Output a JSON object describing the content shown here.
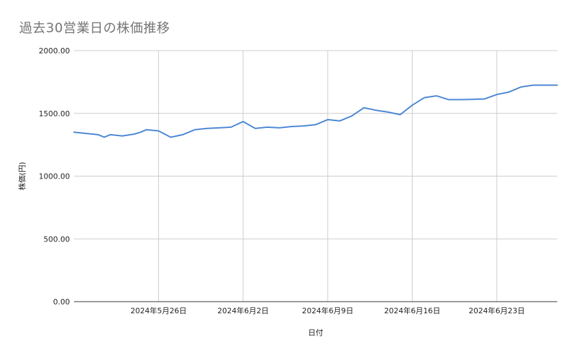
{
  "chart_data": {
    "type": "line",
    "title": "過去30営業日の株価推移",
    "xlabel": "日付",
    "ylabel": "株価(円)",
    "ylim": [
      0,
      2000
    ],
    "y_ticks": [
      0,
      500,
      1000,
      1500,
      2000
    ],
    "y_tick_labels": [
      "0.00",
      "500.00",
      "1000.00",
      "1500.00",
      "2000.00"
    ],
    "xlim": [
      "2024-05-19",
      "2024-06-28"
    ],
    "x_ticks": [
      "2024-05-26",
      "2024-06-02",
      "2024-06-09",
      "2024-06-16",
      "2024-06-23"
    ],
    "x_tick_labels": [
      "2024年5月26日",
      "2024年6月2日",
      "2024年6月9日",
      "2024年6月16日",
      "2024年6月23日"
    ],
    "grid": true,
    "line_color": "#4a86d4",
    "series": [
      {
        "x": [
          "2024-05-19",
          "2024-05-21",
          "2024-05-21",
          "2024-05-22",
          "2024-05-23",
          "2024-05-24",
          "2024-05-24",
          "2024-05-25",
          "2024-05-26",
          "2024-05-27",
          "2024-05-28",
          "2024-05-29",
          "2024-05-30",
          "2024-05-31",
          "2024-06-01",
          "2024-06-02",
          "2024-06-03",
          "2024-06-04",
          "2024-06-05",
          "2024-06-06",
          "2024-06-07",
          "2024-06-08",
          "2024-06-09",
          "2024-06-10",
          "2024-06-11",
          "2024-06-12",
          "2024-06-13",
          "2024-06-14",
          "2024-06-15",
          "2024-06-16",
          "2024-06-17",
          "2024-06-18",
          "2024-06-19",
          "2024-06-20",
          "2024-06-21",
          "2024-06-22",
          "2024-06-23",
          "2024-06-24",
          "2024-06-25",
          "2024-06-26",
          "2024-06-27",
          "2024-06-28"
        ],
        "values": [
          1350,
          1330,
          1310,
          1330,
          1320,
          1335,
          1350,
          1370,
          1360,
          1310,
          1330,
          1370,
          1380,
          1385,
          1390,
          1435,
          1380,
          1390,
          1385,
          1395,
          1400,
          1410,
          1450,
          1440,
          1480,
          1545,
          1525,
          1510,
          1490,
          1565,
          1625,
          1640,
          1610,
          1610,
          1612,
          1615,
          1650,
          1670,
          1710,
          1725,
          1725,
          1725
        ]
      }
    ]
  }
}
